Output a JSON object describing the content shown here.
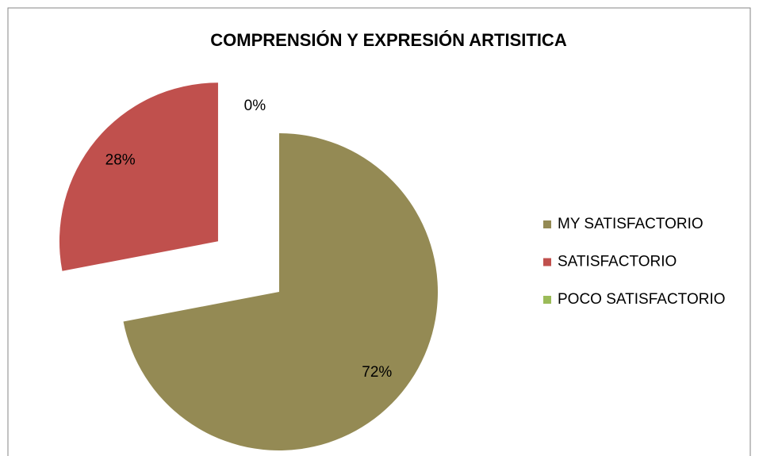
{
  "chart_data": {
    "type": "pie",
    "title": "COMPRENSIÓN Y EXPRESIÓN ARTISITICA",
    "categories": [
      "MY SATISFACTORIO",
      "SATISFACTORIO",
      "POCO SATISFACTORIO"
    ],
    "values": [
      72,
      28,
      0
    ],
    "value_labels": [
      "72%",
      "28%",
      "0%"
    ],
    "colors": [
      "#948a54",
      "#c0504d",
      "#9bbb59"
    ],
    "exploded": [
      false,
      true,
      true
    ],
    "legend": "right"
  }
}
